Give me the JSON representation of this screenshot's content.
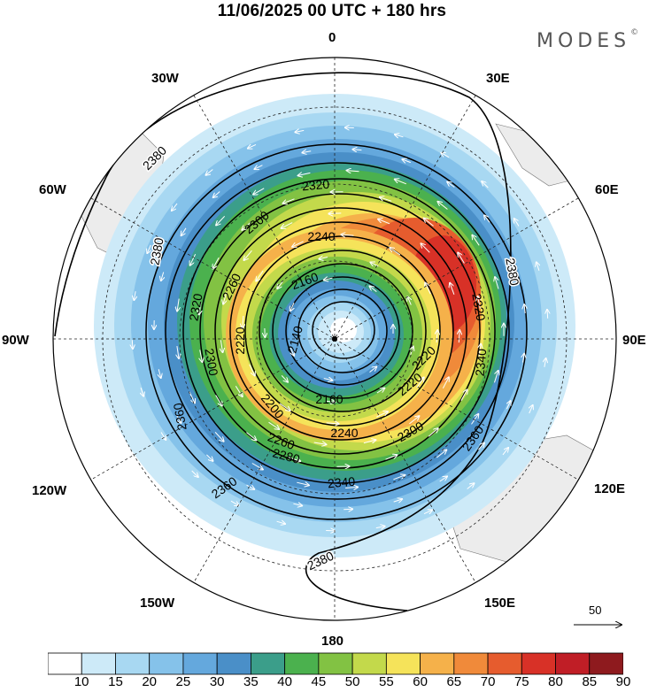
{
  "title": "11/06/2025  00 UTC  + 180 hrs",
  "brand": "MODES",
  "brand_mark": "©",
  "longitude_labels": [
    "0",
    "30E",
    "60E",
    "90E",
    "120E",
    "150E",
    "180",
    "150W",
    "120W",
    "90W",
    "60W",
    "30W"
  ],
  "vector_reference": "50",
  "colorbar": {
    "levels": [
      "10",
      "15",
      "20",
      "25",
      "30",
      "35",
      "40",
      "45",
      "50",
      "55",
      "60",
      "65",
      "70",
      "75",
      "80",
      "85",
      "90"
    ],
    "colors": [
      "#ffffff",
      "#cdeaf8",
      "#a8d8f2",
      "#85c2ea",
      "#64a8dd",
      "#4a8fc8",
      "#3b9e8a",
      "#4bb14e",
      "#82c243",
      "#c3d94b",
      "#f5e35a",
      "#f5b14a",
      "#f08a3a",
      "#e65c2e",
      "#d83127",
      "#c01e26",
      "#8e1a1e"
    ]
  },
  "contour_labels": [
    "2380",
    "2380",
    "2380",
    "2380",
    "2360",
    "2360",
    "2360",
    "2340",
    "2340",
    "2320",
    "2320",
    "2320",
    "2300",
    "2300",
    "2300",
    "2280",
    "2260",
    "2260",
    "2240",
    "2240",
    "2220",
    "2220",
    "2220",
    "2200",
    "2160",
    "2160",
    "2140"
  ]
}
